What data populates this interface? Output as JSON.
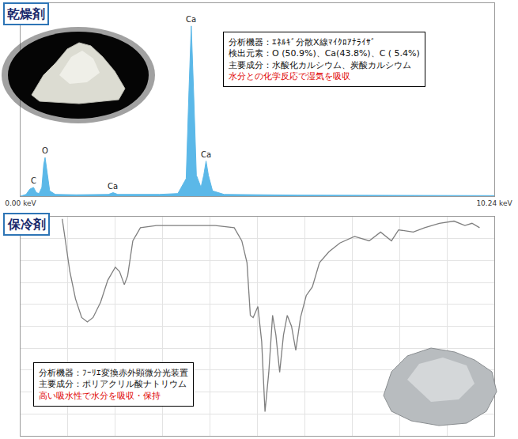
{
  "chart_data": [
    {
      "type": "area",
      "title": "乾燥剤",
      "x": [
        0,
        0.12,
        0.2,
        0.28,
        0.34,
        0.4,
        0.46,
        0.5,
        0.53,
        0.57,
        0.63,
        0.75,
        1.2,
        1.9,
        2.0,
        2.1,
        3.0,
        3.4,
        3.58,
        3.64,
        3.69,
        3.74,
        3.8,
        3.9,
        3.96,
        4.01,
        4.06,
        4.15,
        4.4,
        6.0,
        8.0,
        10.24
      ],
      "values": [
        0,
        1,
        4,
        5,
        2,
        1.5,
        5,
        18,
        22,
        15,
        3,
        1,
        0.8,
        1,
        2,
        1,
        1,
        1.5,
        10,
        60,
        97,
        60,
        12,
        5,
        12,
        20,
        12,
        3,
        1,
        0.6,
        0.4,
        0.3
      ],
      "color": "#5bb8e8",
      "xlim": [
        0,
        10.24
      ],
      "xticks": [
        {
          "value": 0,
          "label": "0.00 keV"
        },
        {
          "value": 10.24,
          "label": "10.24 keV"
        }
      ],
      "ylim": [
        0,
        110
      ],
      "yticks": [],
      "grid": false,
      "tick_labels": "x",
      "annotations": [
        {
          "text": "C",
          "x": 0.28,
          "y": 5
        },
        {
          "text": "O",
          "x": 0.53,
          "y": 22
        },
        {
          "text": "Ca",
          "x": 2.0,
          "y": 2
        },
        {
          "text": "Ca",
          "x": 3.69,
          "y": 97
        },
        {
          "text": "Ca",
          "x": 4.01,
          "y": 20
        }
      ],
      "text_box": {
        "lines": [
          "分析機器：ｴﾈﾙｷﾞ分散X線ﾏｲｸﾛｱﾅﾗｲｻﾞ",
          "検出元素：O (50.9%)、Ca(43.8%)、C ( 5.4%)",
          "主要成分：水酸化カルシウム、炭酸カルシウム"
        ],
        "highlight": "水分との化学反応で湿気を吸収"
      }
    },
    {
      "type": "line",
      "title": "保冷剤",
      "x": [
        8.8,
        9.5,
        10.4,
        11.6,
        12.9,
        14.1,
        15.3,
        16.9,
        18.4,
        20.0,
        20.9,
        21.9,
        22.6,
        23.7,
        25.3,
        28.7,
        34.9,
        41.1,
        45.1,
        46.7,
        47.8,
        48.5,
        49.1,
        50.1,
        50.9,
        51.6,
        52.4,
        53.2,
        53.9,
        54.7,
        55.5,
        56.3,
        57.2,
        58.1,
        59.1,
        60.3,
        61.6,
        63.1,
        65.1,
        67.4,
        70.5,
        73.6,
        76.0,
        78.3,
        79.8,
        82.9,
        85.3,
        88.4,
        91.5,
        93.8,
        95.3,
        96.9
      ],
      "values": [
        99,
        89,
        75,
        62.5,
        54,
        52,
        54,
        61,
        71,
        77,
        75,
        69,
        73,
        89,
        95,
        96,
        96,
        96,
        95,
        89,
        79,
        55,
        54,
        59,
        43,
        11,
        29,
        55,
        46,
        29,
        46,
        55,
        50,
        39,
        54,
        64,
        68,
        79,
        84,
        88,
        91,
        89,
        93,
        89,
        94,
        93,
        95,
        97,
        98,
        96,
        97,
        95
      ],
      "color": "#7f7f7f",
      "xlim": [
        0,
        100
      ],
      "xticks": [
        0,
        10,
        20,
        30,
        40,
        50,
        60,
        70,
        80,
        90,
        100
      ],
      "ylim": [
        0,
        100
      ],
      "yticks": [
        0,
        10,
        20,
        30,
        40,
        50,
        60,
        70,
        80,
        90,
        100
      ],
      "grid": true,
      "tick_labels": false,
      "text_box": {
        "lines": [
          "分析機器：ﾌｰﾘｴ変換赤外顕微分光装置",
          "主要成分：ポリアクリル酸ナトリウム"
        ],
        "highlight": "高い吸水性で水分を吸収・保持"
      }
    }
  ]
}
